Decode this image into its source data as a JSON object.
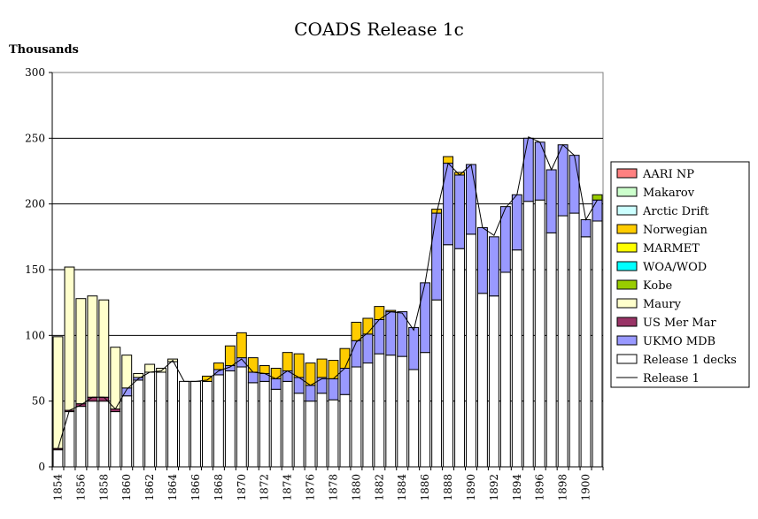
{
  "chart_data": {
    "type": "bar",
    "stacked": true,
    "title": "COADS Release 1c",
    "ylabel": "Thousands",
    "xlabel": "",
    "ylim": [
      0,
      300
    ],
    "yticks": [
      0,
      50,
      100,
      150,
      200,
      250,
      300
    ],
    "grid": true,
    "legend_position": "right",
    "categories": [
      "1854",
      "1855",
      "1856",
      "1857",
      "1858",
      "1859",
      "1860",
      "1861",
      "1862",
      "1863",
      "1864",
      "1865",
      "1866",
      "1867",
      "1868",
      "1869",
      "1870",
      "1871",
      "1872",
      "1873",
      "1874",
      "1875",
      "1876",
      "1877",
      "1878",
      "1879",
      "1880",
      "1881",
      "1882",
      "1883",
      "1884",
      "1885",
      "1886",
      "1887",
      "1888",
      "1889",
      "1890",
      "1891",
      "1892",
      "1893",
      "1894",
      "1895",
      "1896",
      "1897",
      "1898",
      "1899",
      "1900",
      "1901"
    ],
    "xtick_labels": [
      "1854",
      "1856",
      "1858",
      "1860",
      "1862",
      "1864",
      "1866",
      "1868",
      "1870",
      "1872",
      "1874",
      "1876",
      "1878",
      "1880",
      "1882",
      "1884",
      "1886",
      "1888",
      "1890",
      "1892",
      "1894",
      "1896",
      "1898",
      "1900"
    ],
    "series": [
      {
        "name": "Release 1 decks",
        "color": "#ffffff",
        "values": [
          13,
          42,
          46,
          50,
          50,
          42,
          54,
          66,
          72,
          72,
          80,
          65,
          65,
          65,
          70,
          73,
          76,
          64,
          65,
          59,
          65,
          56,
          50,
          56,
          51,
          55,
          76,
          79,
          86,
          85,
          84,
          74,
          87,
          127,
          169,
          166,
          177,
          132,
          130,
          148,
          165,
          202,
          203,
          178,
          191,
          193,
          175,
          187
        ]
      },
      {
        "name": "UKMO MDB",
        "color": "#9999ff",
        "values": [
          0,
          0,
          0,
          0,
          0,
          0,
          6,
          2,
          0,
          0,
          0,
          0,
          0,
          0,
          4,
          4,
          7,
          8,
          6,
          8,
          8,
          12,
          12,
          12,
          16,
          20,
          20,
          22,
          26,
          33,
          34,
          32,
          53,
          66,
          62,
          56,
          53,
          50,
          45,
          50,
          42,
          48,
          44,
          48,
          54,
          44,
          13,
          16
        ]
      },
      {
        "name": "US Mer Mar",
        "color": "#993366",
        "values": [
          1,
          1,
          2,
          3,
          3,
          2,
          0,
          0,
          0,
          0,
          0,
          0,
          0,
          0,
          0,
          0,
          0,
          0,
          0,
          0,
          0,
          0,
          0,
          0,
          0,
          0,
          0,
          0,
          0,
          0,
          0,
          0,
          0,
          0,
          0,
          0,
          0,
          0,
          0,
          0,
          0,
          0,
          0,
          0,
          0,
          0,
          0,
          0
        ]
      },
      {
        "name": "Maury",
        "color": "#ffffcc",
        "values": [
          85,
          109,
          80,
          77,
          74,
          47,
          25,
          3,
          6,
          3,
          2,
          0,
          0,
          0,
          0,
          0,
          0,
          0,
          0,
          0,
          0,
          0,
          0,
          0,
          0,
          0,
          0,
          0,
          0,
          0,
          0,
          0,
          0,
          0,
          0,
          0,
          0,
          0,
          0,
          0,
          0,
          0,
          0,
          0,
          0,
          0,
          0,
          0
        ]
      },
      {
        "name": "Kobe",
        "color": "#99cc00",
        "values": [
          0,
          0,
          0,
          0,
          0,
          0,
          0,
          0,
          0,
          0,
          0,
          0,
          0,
          0,
          0,
          0,
          0,
          0,
          0,
          0,
          0,
          0,
          0,
          0,
          0,
          0,
          0,
          0,
          0,
          0,
          0,
          0,
          0,
          0,
          0,
          0,
          0,
          0,
          0,
          0,
          0,
          0,
          0,
          0,
          0,
          0,
          0,
          4
        ]
      },
      {
        "name": "WOA/WOD",
        "color": "#00ffff",
        "values": [
          0,
          0,
          0,
          0,
          0,
          0,
          0,
          0,
          0,
          0,
          0,
          0,
          0,
          0,
          0,
          0,
          0,
          0,
          0,
          0,
          0,
          0,
          0,
          0,
          0,
          0,
          0,
          0,
          0,
          0,
          0,
          0,
          0,
          0,
          0,
          0,
          0,
          0,
          0,
          0,
          0,
          0,
          0,
          0,
          0,
          0,
          0,
          0
        ]
      },
      {
        "name": "MARMET",
        "color": "#ffff00",
        "values": [
          0,
          0,
          0,
          0,
          0,
          0,
          0,
          0,
          0,
          0,
          0,
          0,
          0,
          0,
          0,
          0,
          0,
          0,
          0,
          0,
          0,
          0,
          0,
          0,
          0,
          0,
          0,
          0,
          0,
          0,
          0,
          0,
          0,
          0,
          0,
          0,
          0,
          0,
          0,
          0,
          0,
          0,
          0,
          0,
          0,
          0,
          0,
          0
        ]
      },
      {
        "name": "Norwegian",
        "color": "#ffcc00",
        "values": [
          0,
          0,
          0,
          0,
          0,
          0,
          0,
          0,
          0,
          0,
          0,
          0,
          0,
          4,
          5,
          15,
          19,
          11,
          6,
          8,
          14,
          18,
          17,
          14,
          14,
          15,
          14,
          12,
          10,
          1,
          0,
          0,
          0,
          3,
          5,
          2,
          0,
          0,
          0,
          0,
          0,
          0,
          0,
          0,
          0,
          0,
          0,
          0
        ]
      },
      {
        "name": "Arctic Drift",
        "color": "#ccffff",
        "values": [
          0,
          0,
          0,
          0,
          0,
          0,
          0,
          0,
          0,
          0,
          0,
          0,
          0,
          0,
          0,
          0,
          0,
          0,
          0,
          0,
          0,
          0,
          0,
          0,
          0,
          0,
          0,
          0,
          0,
          0,
          0,
          0,
          0,
          0,
          0,
          0,
          0,
          0,
          0,
          0,
          0,
          0,
          0,
          0,
          0,
          0,
          0,
          0
        ]
      },
      {
        "name": "Makarov",
        "color": "#ccffcc",
        "values": [
          0,
          0,
          0,
          0,
          0,
          0,
          0,
          0,
          0,
          0,
          0,
          0,
          0,
          0,
          0,
          0,
          0,
          0,
          0,
          0,
          0,
          0,
          0,
          0,
          0,
          0,
          0,
          0,
          0,
          0,
          0,
          0,
          0,
          0,
          0,
          0,
          0,
          0,
          0,
          0,
          0,
          0,
          0,
          0,
          0,
          0,
          0,
          0
        ]
      },
      {
        "name": "AARI NP",
        "color": "#ff8080",
        "values": [
          0,
          0,
          0,
          0,
          0,
          0,
          0,
          0,
          0,
          0,
          0,
          0,
          0,
          0,
          0,
          0,
          0,
          0,
          0,
          0,
          0,
          0,
          0,
          0,
          0,
          0,
          0,
          0,
          0,
          0,
          0,
          0,
          0,
          0,
          0,
          0,
          0,
          0,
          0,
          0,
          0,
          0,
          0,
          0,
          0,
          0,
          0,
          0
        ]
      }
    ],
    "line_series": {
      "name": "Release 1",
      "color": "#000000",
      "values": [
        14,
        43,
        47,
        53,
        53,
        44,
        59,
        67,
        72,
        73,
        81,
        65,
        65,
        66,
        73,
        76,
        82,
        72,
        71,
        67,
        73,
        68,
        62,
        67,
        67,
        75,
        95,
        102,
        112,
        118,
        117,
        104,
        140,
        193,
        231,
        222,
        230,
        182,
        176,
        197,
        207,
        251,
        247,
        226,
        245,
        237,
        188,
        203
      ]
    },
    "legend": [
      "AARI NP",
      "Makarov",
      "Arctic Drift",
      "Norwegian",
      "MARMET",
      "WOA/WOD",
      "Kobe",
      "Maury",
      "US Mer Mar",
      "UKMO MDB",
      "Release 1 decks",
      "Release 1"
    ]
  }
}
